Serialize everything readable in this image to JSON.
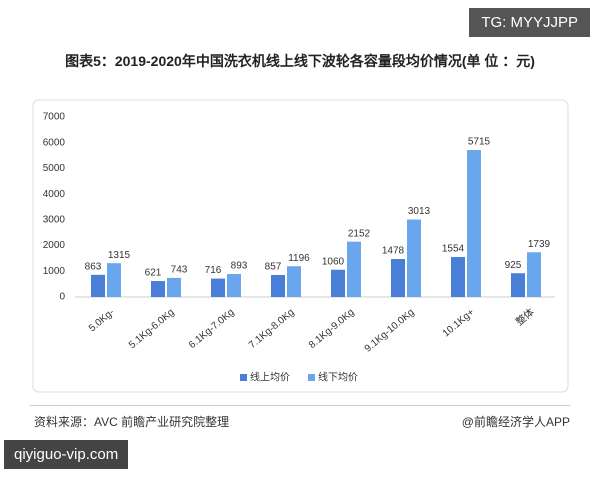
{
  "watermark": "TG: MYYJJPP",
  "chart_data": {
    "type": "bar",
    "title": "图表5：2019-2020年中国洗衣机线上线下波轮各容量段均价情况(单 位 ：元)",
    "categories": [
      "5.0Kg-",
      "5.1Kg-6.0Kg",
      "6.1Kg-7.0Kg",
      "7.1Kg-8.0Kg",
      "8.1Kg-9.0Kg",
      "9.1Kg-10.0Kg",
      "10.1Kg+",
      "整体"
    ],
    "series": [
      {
        "name": "线上均价",
        "color": "#4a7fd8",
        "values": [
          863,
          621,
          716,
          857,
          1060,
          1478,
          1554,
          925
        ]
      },
      {
        "name": "线下均价",
        "color": "#6aa6ee",
        "values": [
          1315,
          743,
          893,
          1196,
          2152,
          3013,
          5715,
          1739
        ]
      }
    ],
    "ylim": [
      0,
      7000
    ],
    "yticks": [
      0,
      1000,
      2000,
      3000,
      4000,
      5000,
      6000,
      7000
    ],
    "grid": false,
    "legend": "bottom"
  },
  "footer": {
    "source": "资料来源：AVC 前瞻产业研究院整理",
    "brand": "@前瞻经济学人APP"
  },
  "site": "qiyiguo-vip.com"
}
